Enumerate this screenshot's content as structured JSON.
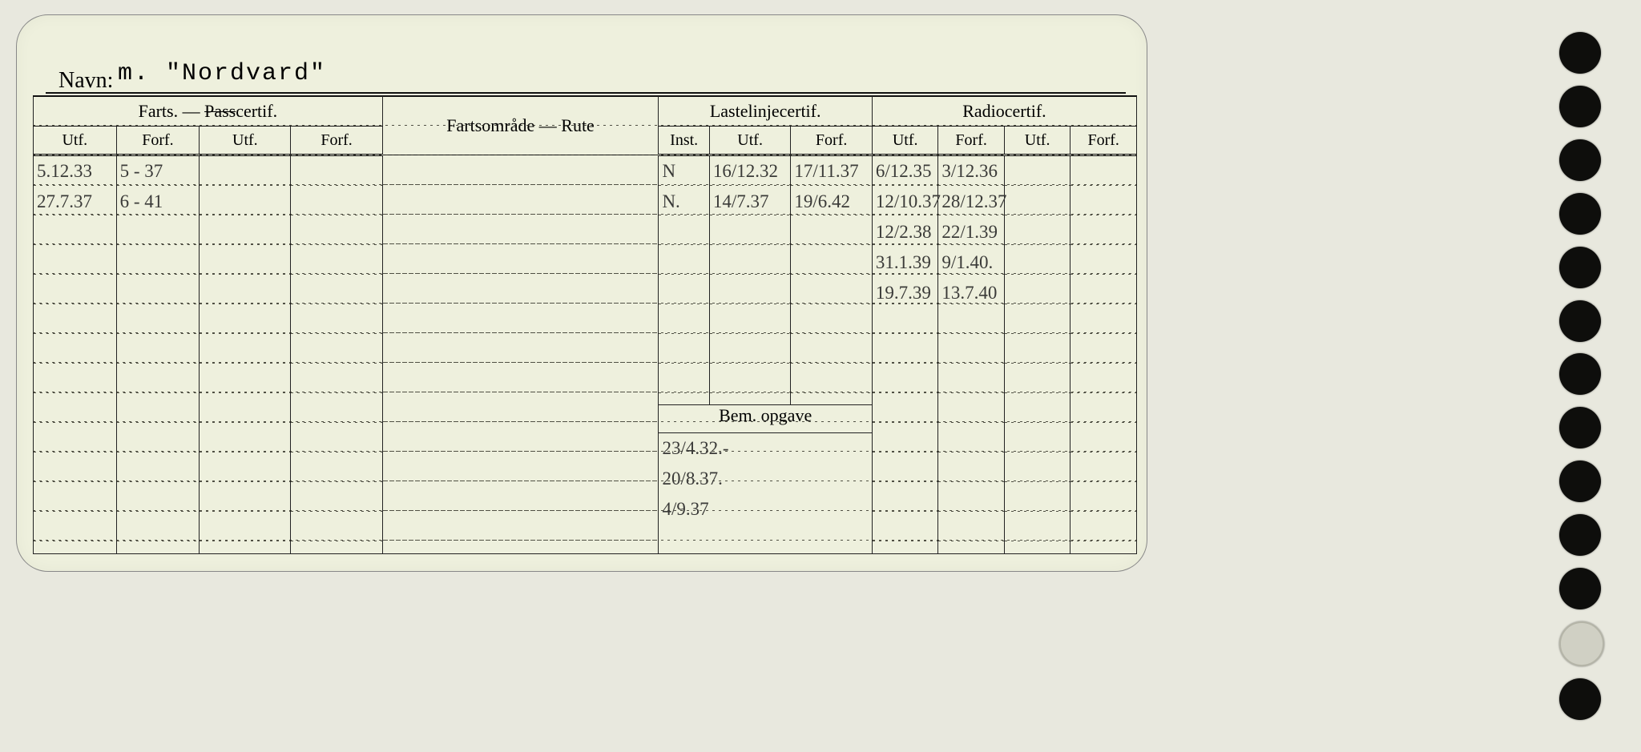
{
  "navn_label": "Navn:",
  "navn_value": "m. \"Nordvard\"",
  "headers": {
    "farts_group": "Farts. — Passcertif.",
    "farts_strike": "Pass",
    "rute": "Fartsområde — Rute",
    "lastelinje": "Lastelinjecertif.",
    "radio": "Radiocertif.",
    "utf": "Utf.",
    "forf": "Forf.",
    "inst": "Inst.",
    "bem": "Bem. opgave"
  },
  "farts": {
    "utf1": "5.12.33\n27.7.37",
    "forf1": "5 - 37\n6 - 41",
    "utf2": "",
    "forf2": ""
  },
  "rute": "",
  "laste": {
    "inst": "N\nN.",
    "utf": "16/12.32\n14/7.37",
    "forf": "17/11.37\n19/6.42"
  },
  "radio": {
    "utf1": "6/12.35\n12/10.37\n12/2.38\n31.1.39\n19.7.39",
    "forf1": "3/12.36\n28/12.37\n22/1.39\n9/1.40.\n13.7.40",
    "utf2": "",
    "forf2": ""
  },
  "bem": "23/4.32.-\n20/8.37.\n4/9.37",
  "colors": {
    "card_bg": "#eef0dd",
    "page_bg": "#e8e8de",
    "line": "#111111",
    "hand": "#3a3a38"
  }
}
